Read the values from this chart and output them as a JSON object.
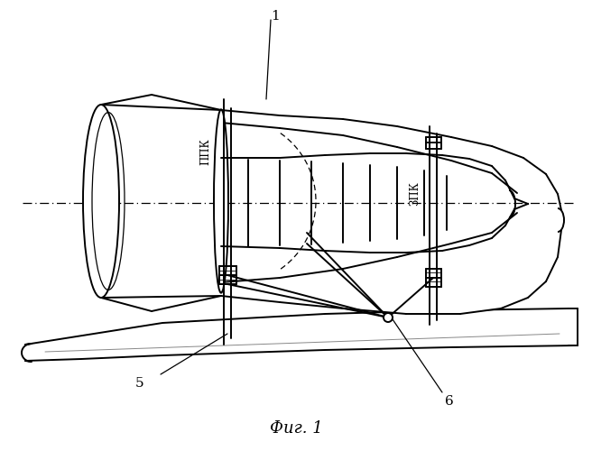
{
  "bg_color": "#ffffff",
  "line_color": "#000000",
  "title": "Фиг. 1",
  "lw_main": 1.4,
  "lw_thin": 0.9,
  "lw_dash": 0.9
}
